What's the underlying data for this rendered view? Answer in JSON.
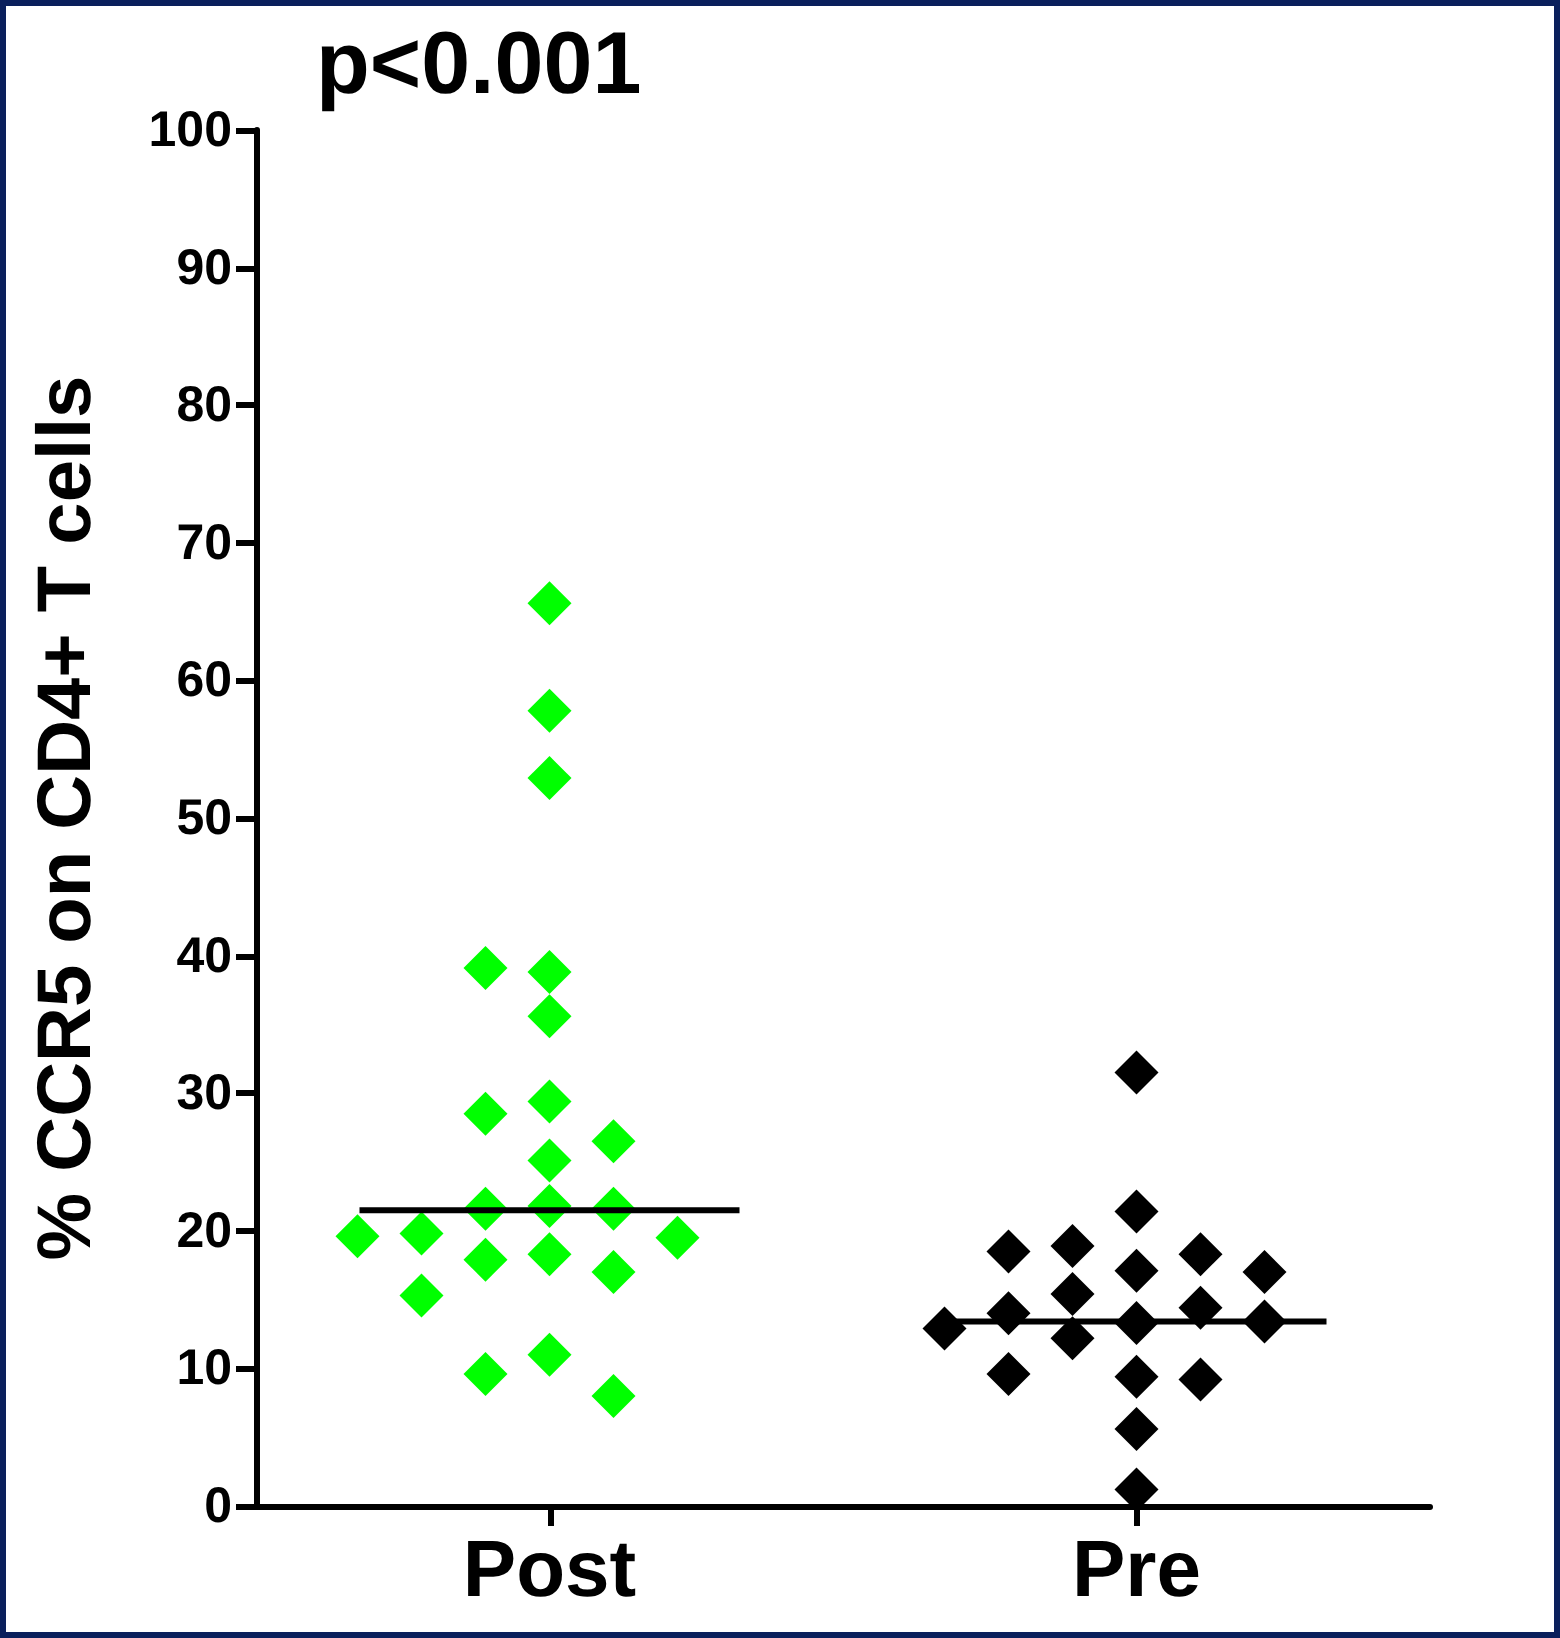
{
  "chart_data": {
    "type": "scatter",
    "ylabel": "% CCR5 on CD4+ T cells",
    "annotations": [
      "p<0.001"
    ],
    "categories": [
      "Post",
      "Pre"
    ],
    "marker": "diamond",
    "grid": false,
    "ylim": [
      0,
      100
    ],
    "yticks": [
      0,
      10,
      20,
      30,
      40,
      50,
      60,
      70,
      80,
      90,
      100
    ],
    "series": [
      {
        "color": "#00ff00",
        "x": [
          "Post",
          "Post",
          "Post",
          "Post",
          "Post",
          "Post",
          "Post",
          "Post",
          "Post",
          "Post",
          "Post",
          "Post",
          "Post",
          "Post",
          "Post",
          "Post",
          "Post",
          "Post",
          "Post",
          "Post",
          "Post",
          "Post",
          "Post"
        ],
        "values": [
          65.6,
          57.8,
          52.9,
          38.8,
          39.1,
          35.6,
          29.4,
          28.5,
          26.5,
          25.1,
          21.8,
          21.6,
          21.6,
          19.8,
          19.5,
          19.6,
          18.3,
          17.9,
          17.0,
          15.3,
          11.0,
          9.6,
          8.0
        ]
      },
      {
        "color": "#000000",
        "x": [
          "Pre",
          "Pre",
          "Pre",
          "Pre",
          "Pre",
          "Pre",
          "Pre",
          "Pre",
          "Pre",
          "Pre",
          "Pre",
          "Pre",
          "Pre",
          "Pre",
          "Pre",
          "Pre",
          "Pre",
          "Pre",
          "Pre"
        ],
        "values": [
          31.5,
          21.4,
          18.9,
          18.3,
          18.5,
          17.1,
          17.0,
          15.4,
          14.4,
          14.0,
          13.3,
          13.4,
          12.9,
          12.2,
          9.4,
          9.2,
          9.6,
          5.6,
          1.2
        ]
      },
      {
        "type": "box",
        "color": "#000000",
        "boxes": [
          {
            "low": 21.5,
            "q1": 21.5,
            "median": 21.5,
            "q3": 21.5,
            "high": 21.5
          },
          {
            "low": 13.4,
            "q1": 13.4,
            "median": 13.4,
            "q3": 13.4,
            "high": 13.4
          }
        ]
      }
    ]
  }
}
